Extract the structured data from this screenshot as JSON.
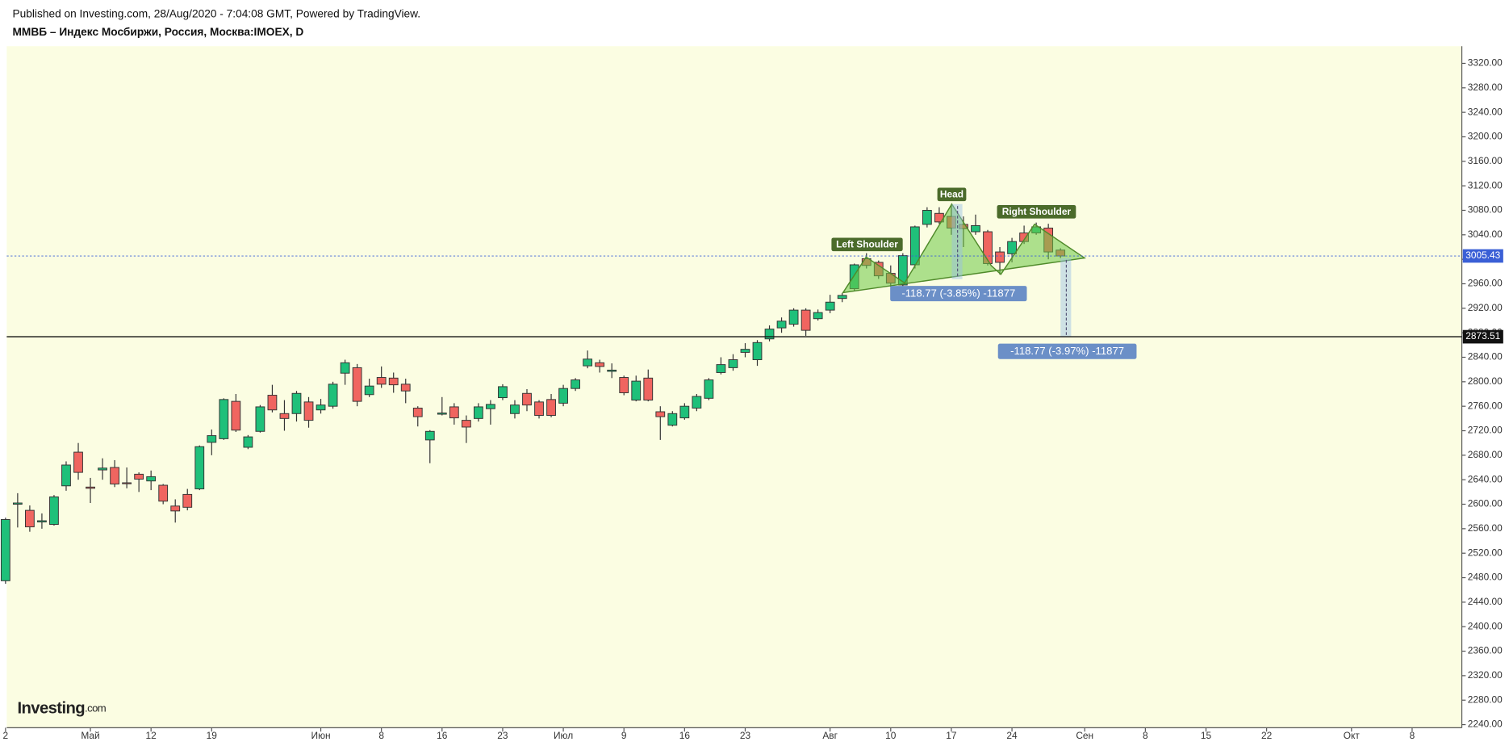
{
  "header": {
    "published": "Published on Investing.com, 28/Aug/2020 - 7:04:08 GMT, Powered by TradingView.",
    "symbol": "ММВБ – Индекс Мосбиржи, Россия, Москва:IMOEX, D"
  },
  "logo": {
    "main": "Investing",
    "suffix": ".com"
  },
  "chart_data": {
    "type": "candlestick",
    "up_color": "#1fc07a",
    "down_color": "#f06560",
    "open": [
      2475,
      2600,
      2590,
      2571,
      2567,
      2630,
      2685,
      2628,
      2656,
      2660,
      2635,
      2649,
      2638,
      2631,
      2597,
      2616,
      2625,
      2701,
      2707,
      2768,
      2693,
      2719,
      2778,
      2748,
      2748,
      2767,
      2754,
      2760,
      2814,
      2823,
      2779,
      2807,
      2806,
      2796,
      2757,
      2705,
      2747,
      2759,
      2737,
      2740,
      2756,
      2774,
      2748,
      2781,
      2767,
      2771,
      2765,
      2789,
      2826,
      2831,
      2817,
      2807,
      2770,
      2806,
      2751,
      2729,
      2741,
      2757,
      2773,
      2815,
      2823,
      2848,
      2836,
      2870,
      2888,
      2894,
      2917,
      2903,
      2917,
      2936,
      2952,
      3001,
      2995,
      2977,
      2958,
      2991,
      3057,
      3075,
      3070,
      3057,
      3045,
      3045,
      3012,
      3009,
      3043,
      3043,
      3051,
      3015
    ],
    "high": [
      2578,
      2618,
      2598,
      2585,
      2615,
      2670,
      2700,
      2643,
      2675,
      2672,
      2660,
      2652,
      2655,
      2633,
      2608,
      2625,
      2696,
      2722,
      2773,
      2780,
      2713,
      2762,
      2795,
      2770,
      2785,
      2775,
      2772,
      2800,
      2836,
      2829,
      2805,
      2825,
      2815,
      2805,
      2760,
      2721,
      2775,
      2765,
      2745,
      2765,
      2770,
      2796,
      2770,
      2788,
      2770,
      2780,
      2795,
      2806,
      2851,
      2836,
      2830,
      2810,
      2810,
      2820,
      2760,
      2752,
      2765,
      2780,
      2806,
      2840,
      2845,
      2863,
      2868,
      2892,
      2905,
      2920,
      2920,
      2918,
      2942,
      2945,
      2993,
      3010,
      2998,
      2990,
      3010,
      3055,
      3085,
      3085,
      3090,
      3070,
      3073,
      3048,
      3020,
      3035,
      3055,
      3060,
      3058,
      3018
    ],
    "low": [
      2470,
      2562,
      2555,
      2560,
      2565,
      2622,
      2640,
      2602,
      2640,
      2628,
      2626,
      2620,
      2623,
      2600,
      2570,
      2590,
      2623,
      2680,
      2705,
      2718,
      2690,
      2717,
      2750,
      2720,
      2735,
      2725,
      2748,
      2756,
      2795,
      2760,
      2775,
      2790,
      2782,
      2765,
      2727,
      2667,
      2745,
      2730,
      2700,
      2735,
      2730,
      2770,
      2740,
      2752,
      2740,
      2742,
      2760,
      2785,
      2822,
      2815,
      2806,
      2778,
      2768,
      2768,
      2705,
      2727,
      2738,
      2752,
      2770,
      2812,
      2818,
      2840,
      2826,
      2866,
      2880,
      2890,
      2875,
      2900,
      2912,
      2930,
      2948,
      2985,
      2968,
      2955,
      2955,
      2985,
      3052,
      3058,
      3040,
      3020,
      3040,
      2990,
      2975,
      2995,
      3025,
      3040,
      3000,
      3002
    ],
    "close": [
      2575,
      2602,
      2563,
      2573,
      2612,
      2664,
      2652,
      2626,
      2659,
      2633,
      2634,
      2641,
      2645,
      2605,
      2589,
      2595,
      2694,
      2712,
      2771,
      2721,
      2710,
      2759,
      2754,
      2740,
      2781,
      2737,
      2762,
      2796,
      2831,
      2768,
      2793,
      2796,
      2795,
      2785,
      2743,
      2719,
      2749,
      2741,
      2726,
      2759,
      2763,
      2792,
      2762,
      2762,
      2745,
      2745,
      2789,
      2803,
      2837,
      2825,
      2819,
      2782,
      2801,
      2770,
      2743,
      2748,
      2760,
      2776,
      2803,
      2828,
      2836,
      2853,
      2864,
      2886,
      2899,
      2917,
      2884,
      2913,
      2930,
      2941,
      2991,
      2990,
      2973,
      2961,
      3006,
      3053,
      3080,
      3061,
      3051,
      3050,
      3055,
      2993,
      2995,
      3029,
      3029,
      3053,
      3012,
      3005.43
    ],
    "xlim": [
      0.1,
      120.1
    ],
    "xticks": [
      {
        "value": 0,
        "label": "2"
      },
      {
        "value": 7,
        "label": "Май"
      },
      {
        "value": 12,
        "label": "12"
      },
      {
        "value": 17,
        "label": "19"
      },
      {
        "value": 26,
        "label": "Июн"
      },
      {
        "value": 31,
        "label": "8"
      },
      {
        "value": 36,
        "label": "16"
      },
      {
        "value": 41,
        "label": "23"
      },
      {
        "value": 46,
        "label": "Июл"
      },
      {
        "value": 51,
        "label": "9"
      },
      {
        "value": 56,
        "label": "16"
      },
      {
        "value": 61,
        "label": "23"
      },
      {
        "value": 68,
        "label": "Авг"
      },
      {
        "value": 73,
        "label": "10"
      },
      {
        "value": 78,
        "label": "17"
      },
      {
        "value": 83,
        "label": "24"
      },
      {
        "value": 89,
        "label": "Сен"
      },
      {
        "value": 94,
        "label": "8"
      },
      {
        "value": 99,
        "label": "15"
      },
      {
        "value": 104,
        "label": "22"
      },
      {
        "value": 111,
        "label": "Окт"
      },
      {
        "value": 116,
        "label": "8"
      }
    ],
    "ylim": [
      2235,
      3348
    ],
    "yticks": [
      {
        "value": 3320,
        "label": "3320.00"
      },
      {
        "value": 3280,
        "label": "3280.00"
      },
      {
        "value": 3240,
        "label": "3240.00"
      },
      {
        "value": 3200,
        "label": "3200.00"
      },
      {
        "value": 3160,
        "label": "3160.00"
      },
      {
        "value": 3120,
        "label": "3120.00"
      },
      {
        "value": 3080,
        "label": "3080.00"
      },
      {
        "value": 3040,
        "label": "3040.00"
      },
      {
        "value": 3000,
        "label": "3000.00"
      },
      {
        "value": 2960,
        "label": "2960.00"
      },
      {
        "value": 2920,
        "label": "2920.00"
      },
      {
        "value": 2880,
        "label": "2880.00"
      },
      {
        "value": 2840,
        "label": "2840.00"
      },
      {
        "value": 2800,
        "label": "2800.00"
      },
      {
        "value": 2760,
        "label": "2760.00"
      },
      {
        "value": 2720,
        "label": "2720.00"
      },
      {
        "value": 2680,
        "label": "2680.00"
      },
      {
        "value": 2640,
        "label": "2640.00"
      },
      {
        "value": 2600,
        "label": "2600.00"
      },
      {
        "value": 2560,
        "label": "2560.00"
      },
      {
        "value": 2520,
        "label": "2520.00"
      },
      {
        "value": 2480,
        "label": "2480.00"
      },
      {
        "value": 2440,
        "label": "2440.00"
      },
      {
        "value": 2400,
        "label": "2400.00"
      },
      {
        "value": 2360,
        "label": "2360.00"
      },
      {
        "value": 2320,
        "label": "2320.00"
      },
      {
        "value": 2280,
        "label": "2280.00"
      },
      {
        "value": 2240,
        "label": "2240.00"
      }
    ],
    "price_lines": [
      {
        "value": 3005.43,
        "color": "#3a5fd6"
      },
      {
        "value": 2873.51,
        "color": "#111111"
      }
    ],
    "annotations": {
      "left_shoulder": "Left Shoulder",
      "head": "Head",
      "right_shoulder": "Right Shoulder",
      "measure_1": "-118.77 (-3.85%) -11877",
      "measure_2": "-118.77 (-3.97%) -11877"
    }
  }
}
